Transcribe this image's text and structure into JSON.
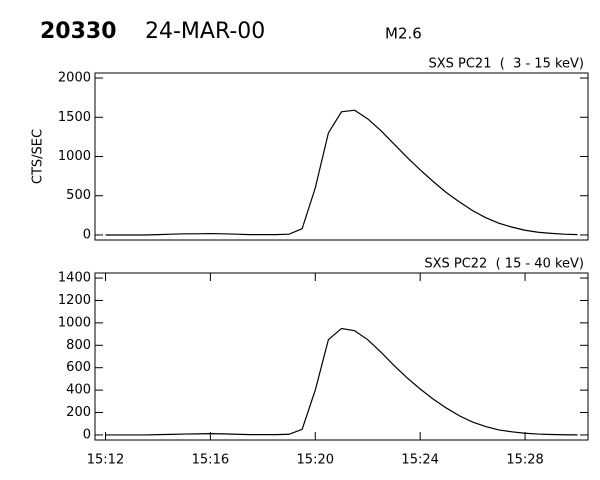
{
  "header": {
    "id": "20330",
    "date": "24-MAR-00",
    "class": "M2.6"
  },
  "chart_data": [
    {
      "type": "line",
      "title": "SXS PC21  (  3 - 15 keV)",
      "y_label": "CTS/SEC",
      "color": "#000000",
      "x": [
        912,
        912.5,
        913,
        913.5,
        914,
        914.5,
        915,
        915.5,
        916,
        916.5,
        917,
        917.5,
        918,
        918.5,
        919,
        919.5,
        920,
        920.5,
        921,
        921.5,
        922,
        922.5,
        923,
        923.5,
        924,
        924.5,
        925,
        925.5,
        926,
        926.5,
        927,
        927.5,
        928,
        928.5,
        929,
        929.5,
        930
      ],
      "values": [
        0,
        0,
        0,
        0,
        5,
        10,
        15,
        15,
        18,
        15,
        10,
        5,
        5,
        5,
        10,
        80,
        600,
        1300,
        1570,
        1590,
        1480,
        1330,
        1160,
        990,
        830,
        680,
        540,
        420,
        310,
        220,
        150,
        100,
        60,
        35,
        20,
        10,
        5
      ],
      "xlim": [
        911.6,
        930.4
      ],
      "ylim": [
        -64,
        2064
      ],
      "yticks": [
        0,
        500,
        1000,
        1500,
        2000
      ]
    },
    {
      "type": "line",
      "title": "SXS PC22  ( 15 - 40 keV)",
      "color": "#000000",
      "x": [
        912,
        912.5,
        913,
        913.5,
        914,
        914.5,
        915,
        915.5,
        916,
        916.5,
        917,
        917.5,
        918,
        918.5,
        919,
        919.5,
        920,
        920.5,
        921,
        921.5,
        922,
        922.5,
        923,
        923.5,
        924,
        924.5,
        925,
        925.5,
        926,
        926.5,
        927,
        927.5,
        928,
        928.5,
        929,
        929.5,
        930
      ],
      "values": [
        0,
        0,
        0,
        0,
        3,
        5,
        8,
        10,
        12,
        10,
        6,
        3,
        3,
        3,
        6,
        50,
        400,
        850,
        950,
        930,
        850,
        740,
        620,
        510,
        410,
        320,
        240,
        170,
        115,
        75,
        45,
        28,
        15,
        8,
        4,
        2,
        1
      ],
      "xlim": [
        911.6,
        930.4
      ],
      "ylim": [
        -45,
        1445
      ],
      "yticks": [
        0,
        200,
        400,
        600,
        800,
        1000,
        1200,
        1400
      ],
      "xticks": [
        {
          "value": 912,
          "label": "15:12"
        },
        {
          "value": 916,
          "label": "15:16"
        },
        {
          "value": 920,
          "label": "15:20"
        },
        {
          "value": 924,
          "label": "15:24"
        },
        {
          "value": 928,
          "label": "15:28"
        }
      ]
    }
  ]
}
